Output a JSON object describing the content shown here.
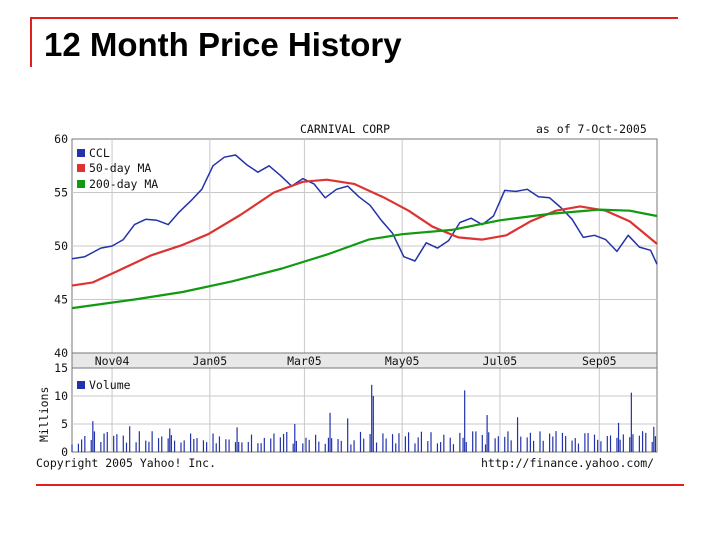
{
  "slide": {
    "title": "12 Month Price History",
    "accent_color": "#e02020"
  },
  "chart_data": {
    "type": "line",
    "header_left": "CARNIVAL CORP",
    "header_right": "as of  7-Oct-2005",
    "footer_left": "Copyright 2005 Yahoo! Inc.",
    "footer_right": "http://finance.yahoo.com/",
    "x_range": [
      "2004-10-07",
      "2005-10-07"
    ],
    "x_tick_labels": [
      "Nov04",
      "Jan05",
      "Mar05",
      "May05",
      "Jul05",
      "Sep05"
    ],
    "x_ticks": [
      "2004-11-01",
      "2005-01-01",
      "2005-03-01",
      "2005-05-01",
      "2005-07-01",
      "2005-09-01"
    ],
    "price_panel": {
      "ylim": [
        40,
        60
      ],
      "y_ticks": [
        "60",
        "55",
        "50",
        "45",
        "40"
      ],
      "legend": [
        {
          "label": "CCL",
          "color": "#2233aa"
        },
        {
          "label": "50-day MA",
          "color": "#dd3333"
        },
        {
          "label": "200-day MA",
          "color": "#119911"
        }
      ],
      "series": [
        {
          "name": "CCL",
          "color": "#2233aa",
          "points": [
            [
              "2004-10-07",
              48.8
            ],
            [
              "2004-10-15",
              49.0
            ],
            [
              "2004-10-25",
              49.8
            ],
            [
              "2004-11-01",
              50.0
            ],
            [
              "2004-11-08",
              50.6
            ],
            [
              "2004-11-15",
              52.0
            ],
            [
              "2004-11-22",
              52.5
            ],
            [
              "2004-11-29",
              52.4
            ],
            [
              "2004-12-06",
              52.0
            ],
            [
              "2004-12-13",
              53.2
            ],
            [
              "2004-12-20",
              54.2
            ],
            [
              "2004-12-27",
              55.3
            ],
            [
              "2005-01-03",
              57.5
            ],
            [
              "2005-01-10",
              58.3
            ],
            [
              "2005-01-17",
              58.5
            ],
            [
              "2005-01-24",
              57.6
            ],
            [
              "2005-01-31",
              56.9
            ],
            [
              "2005-02-07",
              57.5
            ],
            [
              "2005-02-14",
              56.6
            ],
            [
              "2005-02-21",
              55.6
            ],
            [
              "2005-02-28",
              56.3
            ],
            [
              "2005-03-07",
              55.8
            ],
            [
              "2005-03-14",
              54.5
            ],
            [
              "2005-03-21",
              55.3
            ],
            [
              "2005-03-28",
              55.6
            ],
            [
              "2005-04-04",
              54.6
            ],
            [
              "2005-04-11",
              53.8
            ],
            [
              "2005-04-18",
              52.4
            ],
            [
              "2005-04-25",
              51.2
            ],
            [
              "2005-05-02",
              49.0
            ],
            [
              "2005-05-09",
              48.6
            ],
            [
              "2005-05-16",
              50.3
            ],
            [
              "2005-05-23",
              49.8
            ],
            [
              "2005-05-30",
              50.5
            ],
            [
              "2005-06-06",
              52.2
            ],
            [
              "2005-06-13",
              52.6
            ],
            [
              "2005-06-20",
              52.0
            ],
            [
              "2005-06-27",
              52.8
            ],
            [
              "2005-07-04",
              55.2
            ],
            [
              "2005-07-11",
              55.1
            ],
            [
              "2005-07-18",
              55.3
            ],
            [
              "2005-07-25",
              54.6
            ],
            [
              "2005-08-01",
              54.5
            ],
            [
              "2005-08-08",
              53.6
            ],
            [
              "2005-08-15",
              52.5
            ],
            [
              "2005-08-22",
              50.8
            ],
            [
              "2005-08-29",
              51.0
            ],
            [
              "2005-09-05",
              50.6
            ],
            [
              "2005-09-12",
              49.5
            ],
            [
              "2005-09-19",
              51.0
            ],
            [
              "2005-09-26",
              49.9
            ],
            [
              "2005-10-03",
              49.6
            ],
            [
              "2005-10-07",
              48.3
            ]
          ]
        },
        {
          "name": "50-day MA",
          "color": "#dd3333",
          "points": [
            [
              "2004-10-07",
              46.3
            ],
            [
              "2004-10-20",
              46.6
            ],
            [
              "2004-11-05",
              47.7
            ],
            [
              "2004-11-25",
              49.1
            ],
            [
              "2004-12-15",
              50.1
            ],
            [
              "2004-12-31",
              51.1
            ],
            [
              "2005-01-20",
              52.9
            ],
            [
              "2005-02-10",
              55.0
            ],
            [
              "2005-02-28",
              56.0
            ],
            [
              "2005-03-15",
              56.2
            ],
            [
              "2005-04-01",
              55.8
            ],
            [
              "2005-04-20",
              54.5
            ],
            [
              "2005-05-05",
              53.3
            ],
            [
              "2005-05-20",
              51.8
            ],
            [
              "2005-06-05",
              50.8
            ],
            [
              "2005-06-20",
              50.6
            ],
            [
              "2005-07-05",
              51.0
            ],
            [
              "2005-07-20",
              52.3
            ],
            [
              "2005-08-05",
              53.3
            ],
            [
              "2005-08-20",
              53.7
            ],
            [
              "2005-09-05",
              53.3
            ],
            [
              "2005-09-20",
              52.3
            ],
            [
              "2005-10-07",
              50.2
            ]
          ]
        },
        {
          "name": "200-day MA",
          "color": "#119911",
          "points": [
            [
              "2004-10-07",
              44.2
            ],
            [
              "2004-11-15",
              45.0
            ],
            [
              "2004-12-15",
              45.7
            ],
            [
              "2005-01-15",
              46.7
            ],
            [
              "2005-02-15",
              47.9
            ],
            [
              "2005-03-15",
              49.2
            ],
            [
              "2005-04-10",
              50.6
            ],
            [
              "2005-05-01",
              51.1
            ],
            [
              "2005-06-01",
              51.5
            ],
            [
              "2005-07-01",
              52.4
            ],
            [
              "2005-08-01",
              53.0
            ],
            [
              "2005-09-01",
              53.4
            ],
            [
              "2005-09-20",
              53.3
            ],
            [
              "2005-10-07",
              52.8
            ]
          ]
        }
      ]
    },
    "volume_panel": {
      "ylabel": "Millions",
      "ylim": [
        0,
        15
      ],
      "y_ticks": [
        "15",
        "10",
        "5",
        "0"
      ],
      "legend": {
        "label": "Volume",
        "color": "#2233aa"
      },
      "approx_base_millions": 3,
      "spikes": [
        [
          "2004-10-20",
          5.5
        ],
        [
          "2004-11-12",
          4.6
        ],
        [
          "2004-12-07",
          4.2
        ],
        [
          "2005-01-18",
          4.4
        ],
        [
          "2005-02-23",
          5.0
        ],
        [
          "2005-03-17",
          7.0
        ],
        [
          "2005-03-28",
          6.0
        ],
        [
          "2005-04-12",
          12.0
        ],
        [
          "2005-04-13",
          10.0
        ],
        [
          "2005-06-09",
          11.0
        ],
        [
          "2005-06-23",
          6.6
        ],
        [
          "2005-07-12",
          6.2
        ],
        [
          "2005-09-13",
          5.2
        ],
        [
          "2005-09-21",
          10.6
        ],
        [
          "2005-10-05",
          4.5
        ]
      ]
    }
  }
}
